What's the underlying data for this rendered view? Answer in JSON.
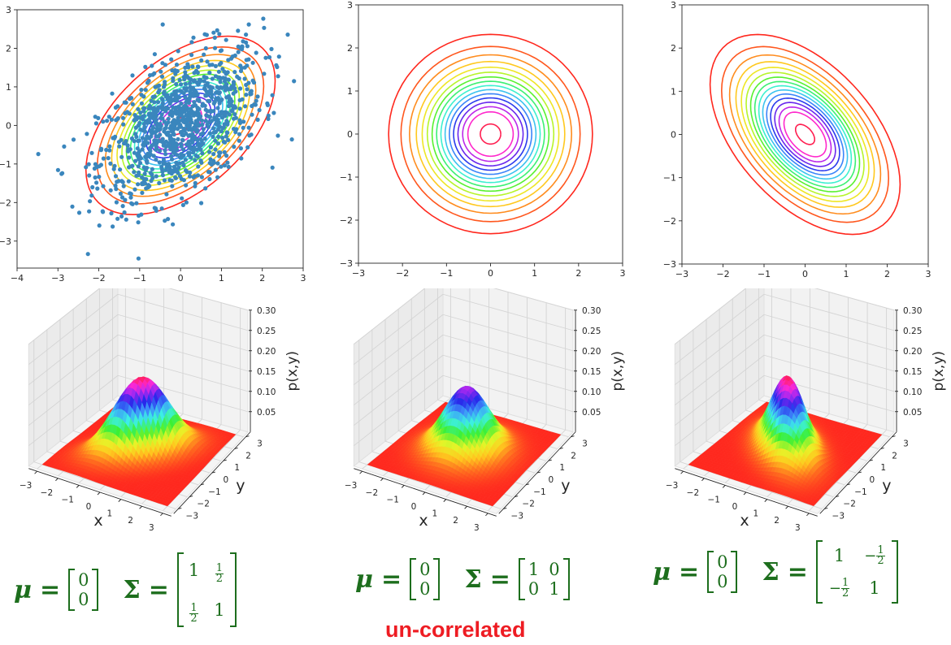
{
  "chart_data": [
    {
      "type": "scatter",
      "title": "",
      "description": "Scatter of samples with contour lines of bivariate normal density",
      "mu": [
        0,
        0
      ],
      "sigma": [
        [
          1,
          0.5
        ],
        [
          0.5,
          1
        ]
      ],
      "xlim": [
        -4,
        3
      ],
      "ylim": [
        -3.7,
        3
      ],
      "xticks": [
        "-4",
        "-3",
        "-2",
        "-1",
        "0",
        "1",
        "2",
        "3"
      ],
      "xtick_values": [
        -4,
        -3,
        -2,
        -1,
        0,
        1,
        2,
        3
      ],
      "yticks": [
        "-3",
        "-2",
        "-1",
        "0",
        "1",
        "2",
        "3"
      ],
      "ytick_values": [
        -3,
        -2,
        -1,
        0,
        1,
        2,
        3
      ],
      "scatter_color": "#3a86bd",
      "n_samples": 1000,
      "contour_levels": 16
    },
    {
      "type": "line",
      "title": "",
      "description": "Contour lines of bivariate normal density",
      "mu": [
        0,
        0
      ],
      "sigma": [
        [
          1,
          0
        ],
        [
          0,
          1
        ]
      ],
      "xlim": [
        -3,
        3
      ],
      "ylim": [
        -3,
        3
      ],
      "xticks": [
        "-3",
        "-2",
        "-1",
        "0",
        "1",
        "2",
        "3"
      ],
      "xtick_values": [
        -3,
        -2,
        -1,
        0,
        1,
        2,
        3
      ],
      "yticks": [
        "-3",
        "-2",
        "-1",
        "0",
        "1",
        "2",
        "3"
      ],
      "ytick_values": [
        -3,
        -2,
        -1,
        0,
        1,
        2,
        3
      ],
      "contour_levels": 16
    },
    {
      "type": "line",
      "title": "",
      "description": "Contour lines of bivariate normal density",
      "mu": [
        0,
        0
      ],
      "sigma": [
        [
          1,
          -0.5
        ],
        [
          -0.5,
          1
        ]
      ],
      "xlim": [
        -3,
        3
      ],
      "ylim": [
        -3,
        3
      ],
      "xticks": [
        "-3",
        "-2",
        "-1",
        "0",
        "1",
        "2",
        "3"
      ],
      "xtick_values": [
        -3,
        -2,
        -1,
        0,
        1,
        2,
        3
      ],
      "yticks": [
        "-3",
        "-2",
        "-1",
        "0",
        "1",
        "2",
        "3"
      ],
      "ytick_values": [
        -3,
        -2,
        -1,
        0,
        1,
        2,
        3
      ],
      "contour_levels": 16
    },
    {
      "type": "area",
      "description": "3D surface of p(x,y)",
      "mu": [
        0,
        0
      ],
      "sigma": [
        [
          1,
          0.5
        ],
        [
          0.5,
          1
        ]
      ],
      "xlabel": "x",
      "ylabel": "y",
      "zlabel": "p(x,y)",
      "xticks": [
        "-3",
        "-2",
        "-1",
        "0",
        "1",
        "2",
        "3"
      ],
      "yticks": [
        "-3",
        "-2",
        "-1",
        "0",
        "1",
        "2",
        "3"
      ],
      "zticks": [
        "0.05",
        "0.10",
        "0.15",
        "0.20",
        "0.25",
        "0.30"
      ],
      "zlim": [
        0,
        0.3
      ]
    },
    {
      "type": "area",
      "description": "3D surface of p(x,y)",
      "mu": [
        0,
        0
      ],
      "sigma": [
        [
          1,
          0
        ],
        [
          0,
          1
        ]
      ],
      "xlabel": "x",
      "ylabel": "y",
      "zlabel": "p(x,y)",
      "xticks": [
        "-3",
        "-2",
        "-1",
        "0",
        "1",
        "2",
        "3"
      ],
      "yticks": [
        "-3",
        "-2",
        "-1",
        "0",
        "1",
        "2",
        "3"
      ],
      "zticks": [
        "0.05",
        "0.10",
        "0.15",
        "0.20",
        "0.25",
        "0.30"
      ],
      "zlim": [
        0,
        0.3
      ]
    },
    {
      "type": "area",
      "description": "3D surface of p(x,y)",
      "mu": [
        0,
        0
      ],
      "sigma": [
        [
          1,
          -0.5
        ],
        [
          -0.5,
          1
        ]
      ],
      "xlabel": "x",
      "ylabel": "y",
      "zlabel": "p(x,y)",
      "xticks": [
        "-3",
        "-2",
        "-1",
        "0",
        "1",
        "2",
        "3"
      ],
      "yticks": [
        "-3",
        "-2",
        "-1",
        "0",
        "1",
        "2",
        "3"
      ],
      "zticks": [
        "0.05",
        "0.10",
        "0.15",
        "0.20",
        "0.25",
        "0.30"
      ],
      "zlim": [
        0,
        0.3
      ]
    }
  ],
  "formulas": [
    {
      "mu_symbol": "μ",
      "sigma_symbol": "Σ",
      "equals": "=",
      "mu": [
        "0",
        "0"
      ],
      "sigma": [
        [
          "1",
          "1/2"
        ],
        [
          "1/2",
          "1"
        ]
      ]
    },
    {
      "mu_symbol": "μ",
      "sigma_symbol": "Σ",
      "equals": "=",
      "mu": [
        "0",
        "0"
      ],
      "sigma": [
        [
          "1",
          "0"
        ],
        [
          "0",
          "1"
        ]
      ]
    },
    {
      "mu_symbol": "μ",
      "sigma_symbol": "Σ",
      "equals": "=",
      "mu": [
        "0",
        "0"
      ],
      "sigma": [
        [
          "1",
          "-1/2"
        ],
        [
          "-1/2",
          "1"
        ]
      ]
    }
  ],
  "annotation": {
    "text": "un-correlated",
    "color": "#ee1c23"
  },
  "colors": {
    "formula": "#1d6e1d",
    "axis": "#262626"
  }
}
